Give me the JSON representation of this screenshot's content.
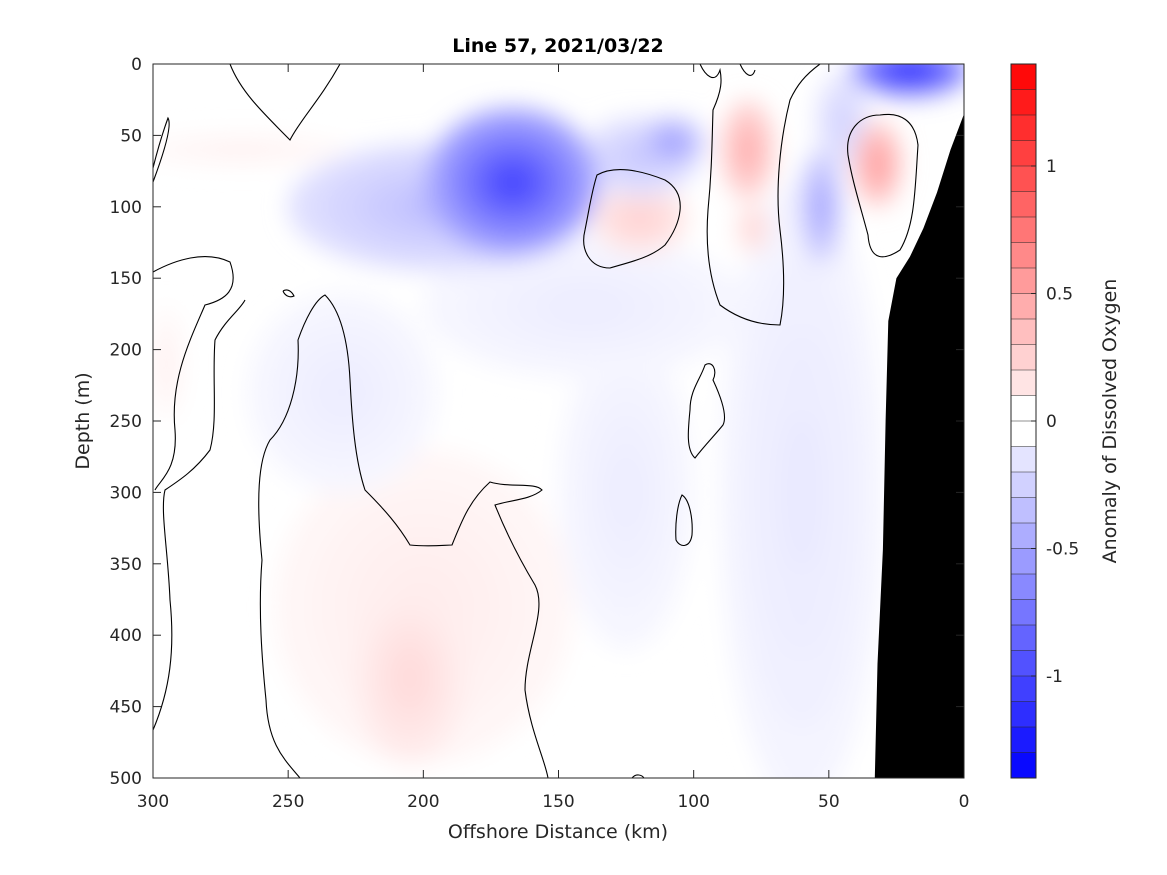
{
  "chart_data": {
    "type": "contour",
    "title": "Line 57, 2021/03/22",
    "xlabel": "Offshore Distance (km)",
    "ylabel": "Depth (m)",
    "colorbar_label": "Anomaly of Dissolved Oxygen",
    "x_axis": {
      "reversed": true,
      "lim": [
        0,
        300
      ],
      "ticks": [
        300,
        250,
        200,
        150,
        100,
        50,
        0
      ]
    },
    "y_axis": {
      "reversed": true,
      "lim": [
        0,
        500
      ],
      "ticks": [
        0,
        50,
        100,
        150,
        200,
        250,
        300,
        350,
        400,
        450,
        500
      ]
    },
    "colorbar": {
      "lim": [
        -1.4,
        1.4
      ],
      "ticks": [
        1,
        0.5,
        0,
        -0.5,
        -1
      ],
      "tick_labels": [
        "1",
        "0.5",
        "0",
        "-0.5",
        "-1"
      ],
      "levels": 28,
      "colormap": "blue-white-red",
      "neg_color": "#0000ff",
      "pos_color": "#ff0000",
      "zero_color": "#ffffff"
    },
    "zero_contour_color": "#000000",
    "land_mask_color": "#000000",
    "bottom_profile": [
      {
        "x": 0,
        "depth": 35
      },
      {
        "x": 5,
        "depth": 60
      },
      {
        "x": 10,
        "depth": 90
      },
      {
        "x": 15,
        "depth": 115
      },
      {
        "x": 20,
        "depth": 135
      },
      {
        "x": 25,
        "depth": 150
      },
      {
        "x": 28,
        "depth": 180
      },
      {
        "x": 29,
        "depth": 250
      },
      {
        "x": 30,
        "depth": 340
      },
      {
        "x": 32,
        "depth": 420
      },
      {
        "x": 33,
        "depth": 500
      }
    ],
    "anomaly_features": [
      {
        "x": 167,
        "depth": 83,
        "value": -1.0,
        "rx": 32,
        "ry": 52
      },
      {
        "x": 195,
        "depth": 100,
        "value": -0.35,
        "rx": 55,
        "ry": 45
      },
      {
        "x": 120,
        "depth": 65,
        "value": -0.3,
        "rx": 22,
        "ry": 28
      },
      {
        "x": 108,
        "depth": 55,
        "value": -0.55,
        "rx": 12,
        "ry": 18
      },
      {
        "x": 20,
        "depth": 5,
        "value": -1.2,
        "rx": 22,
        "ry": 18
      },
      {
        "x": 53,
        "depth": 100,
        "value": -0.5,
        "rx": 8,
        "ry": 40
      },
      {
        "x": 120,
        "depth": 108,
        "value": 0.25,
        "rx": 18,
        "ry": 25
      },
      {
        "x": 80,
        "depth": 60,
        "value": 0.45,
        "rx": 10,
        "ry": 35
      },
      {
        "x": 78,
        "depth": 115,
        "value": 0.25,
        "rx": 6,
        "ry": 18
      },
      {
        "x": 32,
        "depth": 70,
        "value": 0.55,
        "rx": 9,
        "ry": 30
      },
      {
        "x": 205,
        "depth": 430,
        "value": 0.2,
        "rx": 20,
        "ry": 60
      },
      {
        "x": 200,
        "depth": 380,
        "value": 0.1,
        "rx": 55,
        "ry": 110
      },
      {
        "x": 267,
        "depth": 60,
        "value": 0.08,
        "rx": 40,
        "ry": 10
      },
      {
        "x": 295,
        "depth": 210,
        "value": 0.08,
        "rx": 6,
        "ry": 40
      },
      {
        "x": 60,
        "depth": 300,
        "value": -0.12,
        "rx": 30,
        "ry": 220
      },
      {
        "x": 125,
        "depth": 300,
        "value": -0.1,
        "rx": 25,
        "ry": 110
      },
      {
        "x": 230,
        "depth": 230,
        "value": -0.1,
        "rx": 35,
        "ry": 70
      },
      {
        "x": 140,
        "depth": 170,
        "value": -0.1,
        "rx": 60,
        "ry": 50
      },
      {
        "x": 45,
        "depth": 40,
        "value": -0.25,
        "rx": 10,
        "ry": 35
      }
    ]
  }
}
